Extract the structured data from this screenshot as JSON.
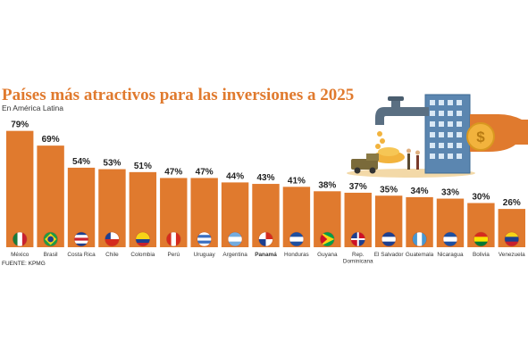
{
  "chart_data": {
    "type": "bar",
    "title": "Países más atractivos para las inversiones a 2025",
    "subtitle": "En América Latina",
    "source": "FUENTE: KPMG",
    "categories": [
      "México",
      "Brasil",
      "Costa Rica",
      "Chile",
      "Colombia",
      "Perú",
      "Uruguay",
      "Argentina",
      "Panamá",
      "Honduras",
      "Guyana",
      "Rep. Dominicana",
      "El Salvador",
      "Guatemala",
      "Nicaragua",
      "Bolivia",
      "Venezuela"
    ],
    "values": [
      79,
      69,
      54,
      53,
      51,
      47,
      47,
      44,
      43,
      41,
      38,
      37,
      35,
      34,
      33,
      30,
      26
    ],
    "value_labels": [
      "79%",
      "69%",
      "54%",
      "53%",
      "51%",
      "47%",
      "47%",
      "44%",
      "43%",
      "41%",
      "38%",
      "37%",
      "35%",
      "34%",
      "33%",
      "30%",
      "26%"
    ],
    "highlight": "Panamá",
    "unit": "%",
    "ylim": [
      0,
      100
    ],
    "grid": false,
    "bar_color": "#e07a2e",
    "title_color": "#e07a2e",
    "flag_icons": [
      "mexico-flag-icon",
      "brazil-flag-icon",
      "costa-rica-flag-icon",
      "chile-flag-icon",
      "colombia-flag-icon",
      "peru-flag-icon",
      "uruguay-flag-icon",
      "argentina-flag-icon",
      "panama-flag-icon",
      "honduras-flag-icon",
      "guyana-flag-icon",
      "dominican-republic-flag-icon",
      "el-salvador-flag-icon",
      "guatemala-flag-icon",
      "nicaragua-flag-icon",
      "bolivia-flag-icon",
      "venezuela-flag-icon"
    ],
    "illustration": "faucet-building-money-hand-illustration"
  }
}
